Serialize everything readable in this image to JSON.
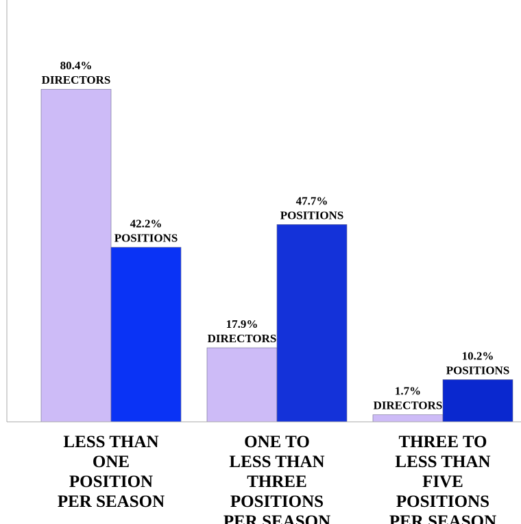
{
  "chart_data": {
    "type": "bar",
    "categories": [
      [
        "LESS THAN",
        "ONE",
        "POSITION",
        "PER SEASON"
      ],
      [
        "ONE TO",
        "LESS THAN",
        "THREE",
        "POSITIONS",
        "PER SEASON"
      ],
      [
        "THREE TO",
        "LESS THAN",
        "FIVE",
        "POSITIONS",
        "PER SEASON"
      ]
    ],
    "series": [
      {
        "name": "DIRECTORS",
        "values": [
          80.4,
          17.9,
          1.7
        ],
        "labels": [
          "80.4%",
          "17.9%",
          "1.7%"
        ],
        "colors": [
          "#cdbbf7",
          "#cdbbf7",
          "#cdbbf7"
        ]
      },
      {
        "name": "POSITIONS",
        "values": [
          42.2,
          47.7,
          10.2
        ],
        "labels": [
          "42.2%",
          "47.7%",
          "10.2%"
        ],
        "colors": [
          "#0a33f5",
          "#1432d9",
          "#0a28cf"
        ]
      }
    ],
    "ylim": [
      0,
      100
    ],
    "grid": false,
    "title": "",
    "xlabel": "",
    "ylabel": ""
  }
}
